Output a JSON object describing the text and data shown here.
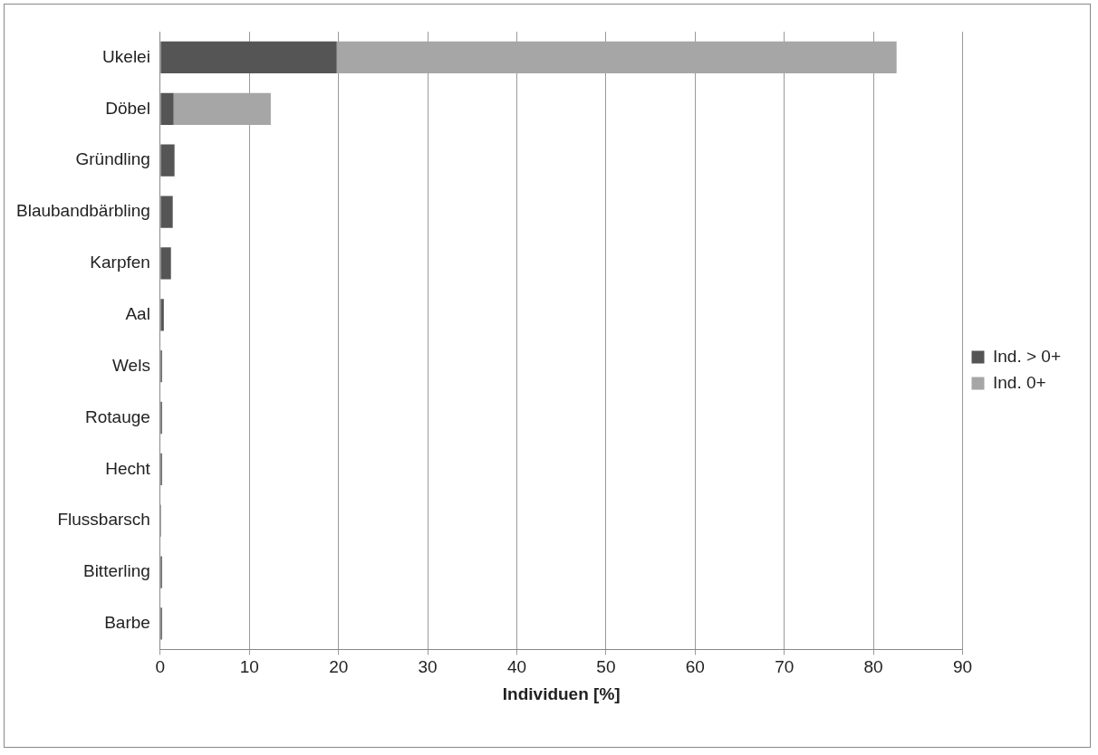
{
  "chart_data": {
    "type": "bar",
    "orientation": "horizontal",
    "stacked": true,
    "xlabel": "Individuen [%]",
    "categories": [
      "Ukelei",
      "Döbel",
      "Gründling",
      "Blaubandbärbling",
      "Karpfen",
      "Aal",
      "Wels",
      "Rotauge",
      "Hecht",
      "Flussbarsch",
      "Bitterling",
      "Barbe"
    ],
    "series": [
      {
        "name": "Ind. > 0+",
        "color": "#555555",
        "values": [
          19.8,
          1.5,
          1.6,
          1.4,
          1.2,
          0.4,
          0.2,
          0.2,
          0.2,
          0.1,
          0.2,
          0.2
        ]
      },
      {
        "name": "Ind. 0+",
        "color": "#a6a6a6",
        "values": [
          62.8,
          10.9,
          null,
          null,
          null,
          null,
          null,
          null,
          null,
          null,
          null,
          null
        ]
      }
    ],
    "xlim": [
      0,
      90
    ],
    "xticks": [
      0,
      10,
      20,
      30,
      40,
      50,
      60,
      70,
      80,
      90
    ],
    "grid": "x",
    "legend": "right"
  }
}
